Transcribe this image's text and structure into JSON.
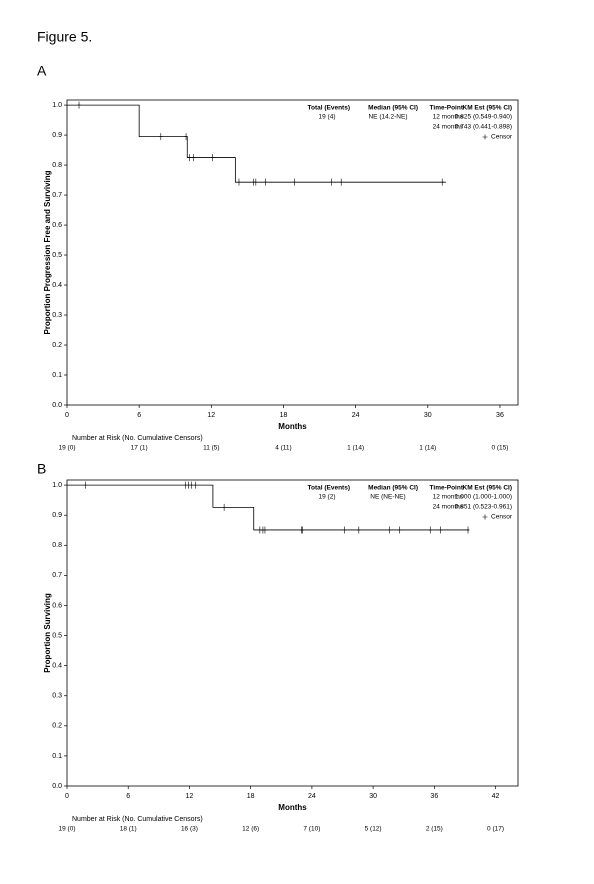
{
  "figure_label": "Figure 5.",
  "chart_data": [
    {
      "type": "km",
      "panel": "A",
      "y_label": "Proportion Progression Free and Surviving",
      "x_label": "Months",
      "xlim": [
        0,
        37.5
      ],
      "ylim": [
        0,
        1.017
      ],
      "xticks": [
        0,
        6,
        12,
        18,
        24,
        30,
        36
      ],
      "yticks": [
        {
          "value": 0,
          "label": "0.0"
        },
        0.1,
        0.2,
        0.3,
        0.4,
        0.5,
        0.6,
        0.7,
        0.8,
        0.9,
        {
          "value": 1,
          "label": "1.0"
        }
      ],
      "series": [
        {
          "color": "#000000",
          "x": [
            0,
            6,
            6,
            10,
            14,
            31.5
          ],
          "values": [
            1,
            0.947,
            0.895,
            0.825,
            0.743,
            0.743
          ]
        }
      ],
      "censors": {
        "x": [
          1,
          7.8,
          9.9,
          10.2,
          10.5,
          12.1,
          14.3,
          15.5,
          15.7,
          16.5,
          18.9,
          22,
          22.8,
          31.2
        ],
        "values": [
          1,
          0.895,
          0.895,
          0.825,
          0.825,
          0.825,
          0.743,
          0.743,
          0.743,
          0.743,
          0.743,
          0.743,
          0.743,
          0.743
        ]
      },
      "legend": {
        "columns": [
          "Total (Events)",
          "Median (95% CI)",
          "Time-Point",
          "KM Est (95% CI)"
        ],
        "total": "19 (4)",
        "median": "NE (14.2-NE)",
        "estimates": [
          {
            "time": "12 months",
            "km": "0.825 (0.549-0.940)"
          },
          {
            "time": "24 months",
            "km": "0.743 (0.441-0.898)"
          }
        ],
        "censor": "Censor"
      },
      "risk_title": "Number at Risk (No. Cumulative Censors)",
      "risk": [
        "19 (0)",
        "17 (1)",
        "11 (5)",
        "4 (11)",
        "1 (14)",
        "1 (14)",
        "0 (15)"
      ]
    },
    {
      "type": "km",
      "panel": "B",
      "y_label": "Proportion Surviving",
      "x_label": "Months",
      "xlim": [
        0,
        44.2
      ],
      "ylim": [
        0,
        1.017
      ],
      "xticks": [
        0,
        6,
        12,
        18,
        24,
        30,
        36,
        42
      ],
      "yticks": [
        {
          "value": 0,
          "label": "0.0"
        },
        0.1,
        0.2,
        0.3,
        0.4,
        0.5,
        0.6,
        0.7,
        0.8,
        0.9,
        {
          "value": 1,
          "label": "1.0"
        }
      ],
      "series": [
        {
          "color": "#000000",
          "x": [
            0,
            14.3,
            18.3,
            39.4
          ],
          "values": [
            1,
            0.926,
            0.851,
            0.851
          ]
        }
      ],
      "censors": {
        "x": [
          1.8,
          11.6,
          11.9,
          12.2,
          12.6,
          15.4,
          18.9,
          19.2,
          19.4,
          23,
          23.1,
          27.2,
          28.6,
          31.6,
          32.6,
          35.6,
          36.6,
          39.3
        ],
        "values": [
          1,
          1,
          1,
          1,
          1,
          0.926,
          0.851,
          0.851,
          0.851,
          0.851,
          0.851,
          0.851,
          0.851,
          0.851,
          0.851,
          0.851,
          0.851,
          0.851
        ]
      },
      "legend": {
        "columns": [
          "Total (Events)",
          "Median (95% CI)",
          "Time-Point",
          "KM Est (95% CI)"
        ],
        "total": "19 (2)",
        "median": "NE (NE-NE)",
        "estimates": [
          {
            "time": "12 months",
            "km": "1.000 (1.000-1.000)"
          },
          {
            "time": "24 months",
            "km": "0.851 (0.523-0.961)"
          }
        ],
        "censor": "Censor"
      },
      "risk_title": "Number at Risk (No. Cumulative Censors)",
      "risk": [
        "19 (0)",
        "18 (1)",
        "16 (3)",
        "12 (6)",
        "7 (10)",
        "5 (12)",
        "2 (15)",
        "0 (17)"
      ]
    }
  ]
}
